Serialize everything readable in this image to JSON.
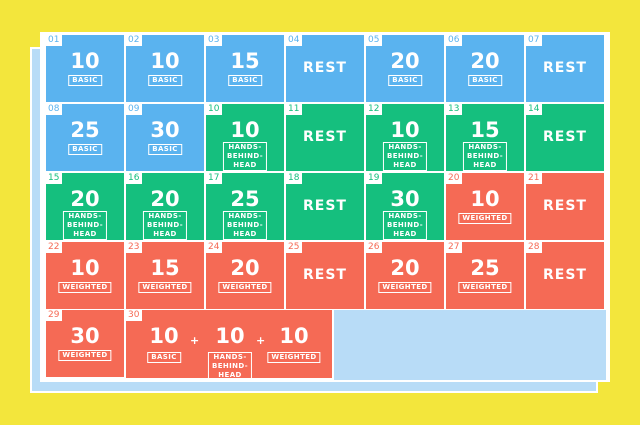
{
  "days": [
    {
      "day": "01",
      "reps": "10",
      "type": "BASIC",
      "color": "blue"
    },
    {
      "day": "02",
      "reps": "10",
      "type": "BASIC",
      "color": "blue"
    },
    {
      "day": "03",
      "reps": "15",
      "type": "BASIC",
      "color": "blue"
    },
    {
      "day": "04",
      "rest": "REST",
      "color": "blue"
    },
    {
      "day": "05",
      "reps": "20",
      "type": "BASIC",
      "color": "blue"
    },
    {
      "day": "06",
      "reps": "20",
      "type": "BASIC",
      "color": "blue"
    },
    {
      "day": "07",
      "rest": "REST",
      "color": "blue"
    },
    {
      "day": "08",
      "reps": "25",
      "type": "BASIC",
      "color": "blue"
    },
    {
      "day": "09",
      "reps": "30",
      "type": "BASIC",
      "color": "blue"
    },
    {
      "day": "10",
      "reps": "10",
      "type": "HANDS-\nBEHIND-HEAD",
      "color": "green"
    },
    {
      "day": "11",
      "rest": "REST",
      "color": "green"
    },
    {
      "day": "12",
      "reps": "10",
      "type": "HANDS-\nBEHIND-HEAD",
      "color": "green"
    },
    {
      "day": "13",
      "reps": "15",
      "type": "HANDS-\nBEHIND-HEAD",
      "color": "green"
    },
    {
      "day": "14",
      "rest": "REST",
      "color": "green"
    },
    {
      "day": "15",
      "reps": "20",
      "type": "HANDS-\nBEHIND-HEAD",
      "color": "green"
    },
    {
      "day": "16",
      "reps": "20",
      "type": "HANDS-\nBEHIND-HEAD",
      "color": "green"
    },
    {
      "day": "17",
      "reps": "25",
      "type": "HANDS-\nBEHIND-HEAD",
      "color": "green"
    },
    {
      "day": "18",
      "rest": "REST",
      "color": "green"
    },
    {
      "day": "19",
      "reps": "30",
      "type": "HANDS-\nBEHIND-HEAD",
      "color": "green"
    },
    {
      "day": "20",
      "reps": "10",
      "type": "WEIGHTED",
      "color": "red"
    },
    {
      "day": "21",
      "rest": "REST",
      "color": "red"
    },
    {
      "day": "22",
      "reps": "10",
      "type": "WEIGHTED",
      "color": "red"
    },
    {
      "day": "23",
      "reps": "15",
      "type": "WEIGHTED",
      "color": "red"
    },
    {
      "day": "24",
      "reps": "20",
      "type": "WEIGHTED",
      "color": "red"
    },
    {
      "day": "25",
      "rest": "REST",
      "color": "red"
    },
    {
      "day": "26",
      "reps": "20",
      "type": "WEIGHTED",
      "color": "red"
    },
    {
      "day": "27",
      "reps": "25",
      "type": "WEIGHTED",
      "color": "red"
    },
    {
      "day": "28",
      "rest": "REST",
      "color": "red"
    },
    {
      "day": "29",
      "reps": "30",
      "type": "WEIGHTED",
      "color": "red"
    }
  ],
  "final_day": {
    "day": "30",
    "color": "red",
    "parts": [
      {
        "reps": "10",
        "type": "BASIC"
      },
      {
        "reps": "10",
        "type": "HANDS-\nBEHIND-HEAD"
      },
      {
        "reps": "10",
        "type": "WEIGHTED"
      }
    ],
    "plus": "+"
  },
  "colors": {
    "blue": "#5ab3ef",
    "green": "#15bf7e",
    "red": "#f56a55",
    "background": "#f3e63c",
    "empty": "#b8dcf7"
  }
}
